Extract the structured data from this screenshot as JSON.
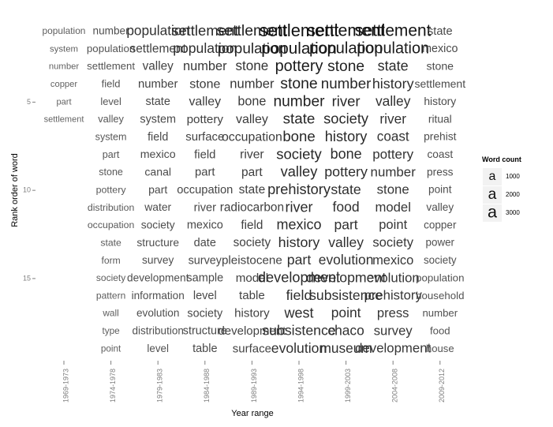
{
  "chart_data": {
    "type": "word-grid",
    "title": "",
    "xlabel": "Year range",
    "ylabel": "Rank order of word",
    "x_categories": [
      "1969-1973",
      "1974-1978",
      "1979-1983",
      "1984-1988",
      "1989-1993",
      "1994-1998",
      "1999-2003",
      "2004-2008",
      "2009-2012"
    ],
    "y_ticks": [
      5,
      10,
      15
    ],
    "y_range": [
      1,
      19
    ],
    "legend": {
      "title": "Word count",
      "glyph": "a",
      "entries": [
        {
          "label": "1000",
          "value": 1000
        },
        {
          "label": "2000",
          "value": 2000
        },
        {
          "label": "3000",
          "value": 3000
        }
      ]
    },
    "series": [
      {
        "x": "1969-1973",
        "words": [
          {
            "rank": 1,
            "word": "population",
            "count": 200
          },
          {
            "rank": 2,
            "word": "system",
            "count": 150
          },
          {
            "rank": 3,
            "word": "number",
            "count": 140
          },
          {
            "rank": 4,
            "word": "copper",
            "count": 130
          },
          {
            "rank": 5,
            "word": "part",
            "count": 120
          },
          {
            "rank": 6,
            "word": "settlement",
            "count": 110
          }
        ]
      },
      {
        "x": "1974-1978",
        "words": [
          {
            "rank": 1,
            "word": "number",
            "count": 450
          },
          {
            "rank": 2,
            "word": "population",
            "count": 400
          },
          {
            "rank": 3,
            "word": "settlement",
            "count": 380
          },
          {
            "rank": 4,
            "word": "field",
            "count": 360
          },
          {
            "rank": 5,
            "word": "level",
            "count": 340
          },
          {
            "rank": 6,
            "word": "valley",
            "count": 320
          },
          {
            "rank": 7,
            "word": "system",
            "count": 300
          },
          {
            "rank": 8,
            "word": "part",
            "count": 290
          },
          {
            "rank": 9,
            "word": "stone",
            "count": 280
          },
          {
            "rank": 10,
            "word": "pottery",
            "count": 270
          },
          {
            "rank": 11,
            "word": "distribution",
            "count": 260
          },
          {
            "rank": 12,
            "word": "occupation",
            "count": 250
          },
          {
            "rank": 13,
            "word": "state",
            "count": 240
          },
          {
            "rank": 14,
            "word": "form",
            "count": 230
          },
          {
            "rank": 15,
            "word": "society",
            "count": 220
          },
          {
            "rank": 16,
            "word": "pattern",
            "count": 210
          },
          {
            "rank": 17,
            "word": "wall",
            "count": 200
          },
          {
            "rank": 18,
            "word": "type",
            "count": 190
          },
          {
            "rank": 19,
            "word": "point",
            "count": 180
          }
        ]
      },
      {
        "x": "1979-1983",
        "words": [
          {
            "rank": 1,
            "word": "population",
            "count": 1350
          },
          {
            "rank": 2,
            "word": "settlement",
            "count": 850
          },
          {
            "rank": 3,
            "word": "valley",
            "count": 800
          },
          {
            "rank": 4,
            "word": "number",
            "count": 720
          },
          {
            "rank": 5,
            "word": "state",
            "count": 640
          },
          {
            "rank": 6,
            "word": "system",
            "count": 620
          },
          {
            "rank": 7,
            "word": "field",
            "count": 600
          },
          {
            "rank": 8,
            "word": "mexico",
            "count": 580
          },
          {
            "rank": 9,
            "word": "canal",
            "count": 560
          },
          {
            "rank": 10,
            "word": "part",
            "count": 540
          },
          {
            "rank": 11,
            "word": "water",
            "count": 520
          },
          {
            "rank": 12,
            "word": "society",
            "count": 500
          },
          {
            "rank": 13,
            "word": "structure",
            "count": 490
          },
          {
            "rank": 14,
            "word": "survey",
            "count": 480
          },
          {
            "rank": 15,
            "word": "development",
            "count": 470
          },
          {
            "rank": 16,
            "word": "information",
            "count": 460
          },
          {
            "rank": 17,
            "word": "evolution",
            "count": 450
          },
          {
            "rank": 18,
            "word": "distribution",
            "count": 440
          },
          {
            "rank": 19,
            "word": "level",
            "count": 430
          }
        ]
      },
      {
        "x": "1984-1988",
        "words": [
          {
            "rank": 1,
            "word": "settlement",
            "count": 1750
          },
          {
            "rank": 2,
            "word": "population",
            "count": 1450
          },
          {
            "rank": 3,
            "word": "number",
            "count": 1100
          },
          {
            "rank": 4,
            "word": "stone",
            "count": 1000
          },
          {
            "rank": 5,
            "word": "valley",
            "count": 950
          },
          {
            "rank": 6,
            "word": "pottery",
            "count": 780
          },
          {
            "rank": 7,
            "word": "surface",
            "count": 740
          },
          {
            "rank": 8,
            "word": "field",
            "count": 720
          },
          {
            "rank": 9,
            "word": "part",
            "count": 700
          },
          {
            "rank": 10,
            "word": "occupation",
            "count": 680
          },
          {
            "rank": 11,
            "word": "river",
            "count": 650
          },
          {
            "rank": 12,
            "word": "mexico",
            "count": 640
          },
          {
            "rank": 13,
            "word": "date",
            "count": 630
          },
          {
            "rank": 14,
            "word": "survey",
            "count": 620
          },
          {
            "rank": 15,
            "word": "sample",
            "count": 640
          },
          {
            "rank": 16,
            "word": "level",
            "count": 630
          },
          {
            "rank": 17,
            "word": "society",
            "count": 620
          },
          {
            "rank": 18,
            "word": "structure",
            "count": 610
          },
          {
            "rank": 19,
            "word": "table",
            "count": 640
          }
        ]
      },
      {
        "x": "1989-1993",
        "words": [
          {
            "rank": 1,
            "word": "settlement",
            "count": 2100
          },
          {
            "rank": 2,
            "word": "population",
            "count": 1900
          },
          {
            "rank": 3,
            "word": "stone",
            "count": 1300
          },
          {
            "rank": 4,
            "word": "number",
            "count": 1150
          },
          {
            "rank": 5,
            "word": "bone",
            "count": 1050
          },
          {
            "rank": 6,
            "word": "valley",
            "count": 1000
          },
          {
            "rank": 7,
            "word": "occupation",
            "count": 950
          },
          {
            "rank": 8,
            "word": "river",
            "count": 900
          },
          {
            "rank": 9,
            "word": "part",
            "count": 870
          },
          {
            "rank": 10,
            "word": "state",
            "count": 850
          },
          {
            "rank": 11,
            "word": "radiocarbon",
            "count": 830
          },
          {
            "rank": 12,
            "word": "field",
            "count": 810
          },
          {
            "rank": 13,
            "word": "society",
            "count": 800
          },
          {
            "rank": 14,
            "word": "pleistocene",
            "count": 790
          },
          {
            "rank": 15,
            "word": "model",
            "count": 780
          },
          {
            "rank": 16,
            "word": "table",
            "count": 770
          },
          {
            "rank": 17,
            "word": "history",
            "count": 760
          },
          {
            "rank": 18,
            "word": "development",
            "count": 750
          },
          {
            "rank": 19,
            "word": "surface",
            "count": 740
          }
        ]
      },
      {
        "x": "1994-1998",
        "words": [
          {
            "rank": 1,
            "word": "settlement",
            "count": 3100
          },
          {
            "rank": 2,
            "word": "population",
            "count": 2600
          },
          {
            "rank": 3,
            "word": "pottery",
            "count": 2300
          },
          {
            "rank": 4,
            "word": "stone",
            "count": 2100
          },
          {
            "rank": 5,
            "word": "number",
            "count": 2000
          },
          {
            "rank": 6,
            "word": "state",
            "count": 1850
          },
          {
            "rank": 7,
            "word": "bone",
            "count": 1800
          },
          {
            "rank": 8,
            "word": "society",
            "count": 1750
          },
          {
            "rank": 9,
            "word": "valley",
            "count": 1700
          },
          {
            "rank": 10,
            "word": "prehistory",
            "count": 1650
          },
          {
            "rank": 11,
            "word": "river",
            "count": 1600
          },
          {
            "rank": 12,
            "word": "mexico",
            "count": 1580
          },
          {
            "rank": 13,
            "word": "history",
            "count": 1560
          },
          {
            "rank": 14,
            "word": "part",
            "count": 1500
          },
          {
            "rank": 15,
            "word": "development",
            "count": 1650
          },
          {
            "rank": 16,
            "word": "field",
            "count": 1550
          },
          {
            "rank": 17,
            "word": "west",
            "count": 1600
          },
          {
            "rank": 18,
            "word": "subsistence",
            "count": 1500
          },
          {
            "rank": 19,
            "word": "evolution",
            "count": 1450
          }
        ]
      },
      {
        "x": "1999-2003",
        "words": [
          {
            "rank": 1,
            "word": "settlement",
            "count": 2900
          },
          {
            "rank": 2,
            "word": "population",
            "count": 2400
          },
          {
            "rank": 3,
            "word": "stone",
            "count": 2000
          },
          {
            "rank": 4,
            "word": "number",
            "count": 1850
          },
          {
            "rank": 5,
            "word": "river",
            "count": 1750
          },
          {
            "rank": 6,
            "word": "society",
            "count": 1700
          },
          {
            "rank": 7,
            "word": "history",
            "count": 1650
          },
          {
            "rank": 8,
            "word": "bone",
            "count": 1600
          },
          {
            "rank": 9,
            "word": "pottery",
            "count": 1550
          },
          {
            "rank": 10,
            "word": "state",
            "count": 1500
          },
          {
            "rank": 11,
            "word": "food",
            "count": 1450
          },
          {
            "rank": 12,
            "word": "part",
            "count": 1430
          },
          {
            "rank": 13,
            "word": "valley",
            "count": 1410
          },
          {
            "rank": 14,
            "word": "evolution",
            "count": 1400
          },
          {
            "rank": 15,
            "word": "development",
            "count": 1500
          },
          {
            "rank": 16,
            "word": "subsistence",
            "count": 1450
          },
          {
            "rank": 17,
            "word": "point",
            "count": 1400
          },
          {
            "rank": 18,
            "word": "chaco",
            "count": 1380
          },
          {
            "rank": 19,
            "word": "museum",
            "count": 1360
          }
        ]
      },
      {
        "x": "2004-2008",
        "words": [
          {
            "rank": 1,
            "word": "settlement",
            "count": 2700
          },
          {
            "rank": 2,
            "word": "population",
            "count": 2300
          },
          {
            "rank": 3,
            "word": "state",
            "count": 1600
          },
          {
            "rank": 4,
            "word": "history",
            "count": 1550
          },
          {
            "rank": 5,
            "word": "valley",
            "count": 1400
          },
          {
            "rank": 6,
            "word": "river",
            "count": 1350
          },
          {
            "rank": 7,
            "word": "coast",
            "count": 1300
          },
          {
            "rank": 8,
            "word": "pottery",
            "count": 1280
          },
          {
            "rank": 9,
            "word": "number",
            "count": 1250
          },
          {
            "rank": 10,
            "word": "stone",
            "count": 1200
          },
          {
            "rank": 11,
            "word": "model",
            "count": 1180
          },
          {
            "rank": 12,
            "word": "point",
            "count": 1160
          },
          {
            "rank": 13,
            "word": "society",
            "count": 1140
          },
          {
            "rank": 14,
            "word": "mexico",
            "count": 1130
          },
          {
            "rank": 15,
            "word": "evolution",
            "count": 1200
          },
          {
            "rank": 16,
            "word": "prehistory",
            "count": 1180
          },
          {
            "rank": 17,
            "word": "press",
            "count": 1160
          },
          {
            "rank": 18,
            "word": "survey",
            "count": 1140
          },
          {
            "rank": 19,
            "word": "development",
            "count": 1200
          }
        ]
      },
      {
        "x": "2009-2012",
        "words": [
          {
            "rank": 1,
            "word": "state",
            "count": 650
          },
          {
            "rank": 2,
            "word": "mexico",
            "count": 600
          },
          {
            "rank": 3,
            "word": "stone",
            "count": 560
          },
          {
            "rank": 4,
            "word": "settlement",
            "count": 540
          },
          {
            "rank": 5,
            "word": "history",
            "count": 520
          },
          {
            "rank": 6,
            "word": "ritual",
            "count": 500
          },
          {
            "rank": 7,
            "word": "prehist",
            "count": 490
          },
          {
            "rank": 8,
            "word": "coast",
            "count": 480
          },
          {
            "rank": 9,
            "word": "press",
            "count": 470
          },
          {
            "rank": 10,
            "word": "point",
            "count": 460
          },
          {
            "rank": 11,
            "word": "valley",
            "count": 450
          },
          {
            "rank": 12,
            "word": "copper",
            "count": 440
          },
          {
            "rank": 13,
            "word": "power",
            "count": 430
          },
          {
            "rank": 14,
            "word": "society",
            "count": 420
          },
          {
            "rank": 15,
            "word": "population",
            "count": 410
          },
          {
            "rank": 16,
            "word": "household",
            "count": 400
          },
          {
            "rank": 17,
            "word": "number",
            "count": 390
          },
          {
            "rank": 18,
            "word": "food",
            "count": 380
          },
          {
            "rank": 19,
            "word": "house",
            "count": 370
          }
        ]
      }
    ]
  }
}
